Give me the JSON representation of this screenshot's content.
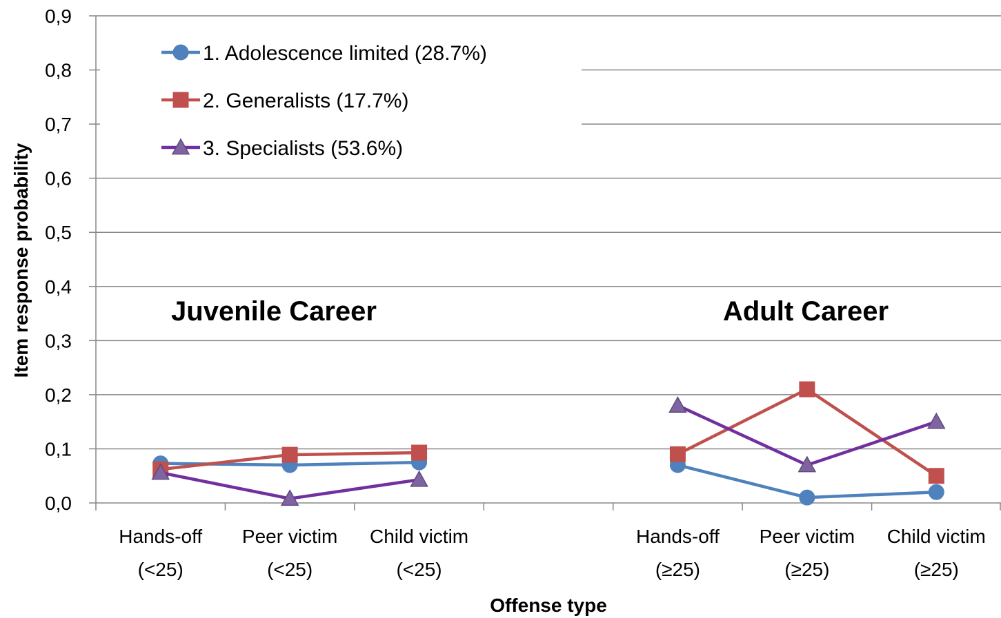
{
  "chart_data": {
    "type": "line",
    "ylabel": "Item response probability",
    "xlabel": "Offense type",
    "ylim": [
      0,
      0.9
    ],
    "y_ticks": [
      "0,0",
      "0,1",
      "0,2",
      "0,3",
      "0,4",
      "0,5",
      "0,6",
      "0,7",
      "0,8",
      "0,9"
    ],
    "grid": "horizontal",
    "legend_position": "top-left",
    "categories": [
      {
        "line1": "Hands-off",
        "line2": "(<25)"
      },
      {
        "line1": "Peer victim",
        "line2": "(<25)"
      },
      {
        "line1": "Child victim",
        "line2": "(<25)"
      },
      {
        "line1": "",
        "line2": ""
      },
      {
        "line1": "Hands-off",
        "line2": "(≥25)"
      },
      {
        "line1": "Peer victim",
        "line2": "(≥25)"
      },
      {
        "line1": "Child victim",
        "line2": "(≥25)"
      }
    ],
    "annotations": [
      {
        "text": "Juvenile Career"
      },
      {
        "text": "Adult Career"
      }
    ],
    "series": [
      {
        "name": "1. Adolescence limited (28.7%)",
        "color": "#4F81BD",
        "marker": "circle",
        "segments": [
          [
            0.073,
            0.07,
            0.075
          ],
          [
            0.07,
            0.01,
            0.02
          ]
        ]
      },
      {
        "name": "2. Generalists (17.7%)",
        "color": "#C0504D",
        "marker": "square",
        "segments": [
          [
            0.062,
            0.089,
            0.093
          ],
          [
            0.09,
            0.21,
            0.05
          ]
        ]
      },
      {
        "name": "3. Specialists (53.6%)",
        "color": "#7030A0",
        "marker": "triangle",
        "segments": [
          [
            0.056,
            0.008,
            0.043
          ],
          [
            0.18,
            0.07,
            0.15
          ]
        ]
      }
    ]
  }
}
